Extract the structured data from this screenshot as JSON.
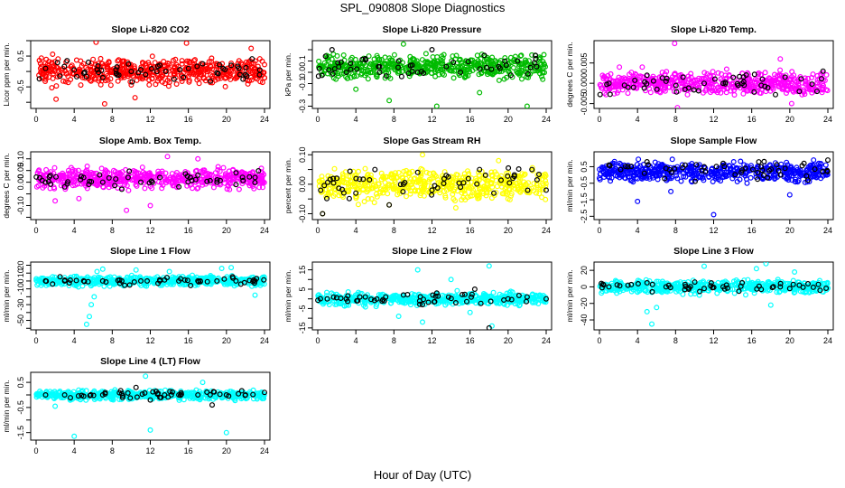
{
  "page": {
    "title": "SPL_090808  Slope Diagnostics",
    "xlabel": "Hour of Day (UTC)"
  },
  "chart_data": [
    {
      "type": "scatter",
      "title": "Slope Li-820 CO2",
      "ylabel": "Licor ppm per min.",
      "color": "#ff0000",
      "xlim": [
        0,
        24
      ],
      "xticks": [
        0,
        4,
        8,
        12,
        16,
        20,
        24
      ],
      "ylim": [
        -1.2,
        1.0
      ],
      "yticks": [
        -1.0,
        -0.5,
        0.0,
        0.5,
        1.0
      ],
      "ytick_labels": [
        "",
        "-0.5",
        "",
        "0.5",
        ""
      ],
      "center": 0.0,
      "spread": 0.28,
      "seed": 11,
      "outliers": [
        [
          6.3,
          0.95
        ],
        [
          7.2,
          -1.05
        ],
        [
          2.1,
          -0.9
        ],
        [
          15.8,
          0.92
        ],
        [
          10.4,
          -0.85
        ],
        [
          22.6,
          0.75
        ]
      ],
      "black_points": [
        [
          1.0,
          0.1
        ],
        [
          2.5,
          -0.15
        ],
        [
          4.0,
          0.05
        ],
        [
          5.5,
          0.3
        ],
        [
          7.0,
          -0.2
        ],
        [
          8.5,
          0.15
        ],
        [
          10.0,
          0.0
        ],
        [
          11.5,
          -0.1
        ],
        [
          13.0,
          0.2
        ],
        [
          14.5,
          -0.25
        ],
        [
          16.0,
          0.1
        ],
        [
          17.5,
          0.25
        ],
        [
          19.0,
          -0.05
        ],
        [
          20.5,
          0.2
        ],
        [
          22.0,
          -0.1
        ],
        [
          23.5,
          0.05
        ]
      ]
    },
    {
      "type": "scatter",
      "title": "Slope Li-820 Pressure",
      "ylabel": "kPa per min.",
      "color": "#00bb00",
      "xlim": [
        0,
        24
      ],
      "xticks": [
        0,
        4,
        8,
        12,
        16,
        20,
        24
      ],
      "ylim": [
        -0.32,
        0.28
      ],
      "yticks": [
        -0.3,
        -0.2,
        -0.1,
        0.0,
        0.1,
        0.2
      ],
      "ytick_labels": [
        "-0.3",
        "",
        "-0.1",
        "0.0",
        "0.1",
        ""
      ],
      "center": 0.05,
      "spread": 0.07,
      "seed": 23,
      "outliers": [
        [
          4.0,
          -0.15
        ],
        [
          7.5,
          -0.25
        ],
        [
          12.5,
          -0.3
        ],
        [
          17.0,
          -0.18
        ],
        [
          22.0,
          -0.3
        ],
        [
          9.0,
          0.25
        ]
      ],
      "black_points": [
        [
          1.5,
          0.2
        ],
        [
          3.0,
          0.0
        ],
        [
          5.0,
          0.12
        ],
        [
          6.5,
          0.05
        ],
        [
          8.5,
          0.1
        ],
        [
          10.5,
          0.0
        ],
        [
          12.0,
          0.2
        ],
        [
          13.5,
          0.05
        ],
        [
          15.0,
          0.0
        ],
        [
          17.5,
          0.15
        ],
        [
          19.0,
          0.05
        ],
        [
          21.0,
          0.1
        ],
        [
          23.0,
          0.05
        ]
      ]
    },
    {
      "type": "scatter",
      "title": "Slope Li-820 Temp.",
      "ylabel": "degrees C per min.",
      "color": "#ff00ff",
      "xlim": [
        0,
        24
      ],
      "xticks": [
        0,
        4,
        8,
        12,
        16,
        20,
        24
      ],
      "ylim": [
        -0.0062,
        0.0105
      ],
      "yticks": [
        -0.005,
        0.0,
        0.005
      ],
      "ytick_labels": [
        "-0.005",
        "0.000",
        "0.005"
      ],
      "center": 0.0,
      "spread": 0.0018,
      "seed": 37,
      "outliers": [
        [
          7.9,
          0.0098
        ],
        [
          8.2,
          -0.006
        ],
        [
          2.1,
          0.004
        ],
        [
          19.0,
          0.006
        ],
        [
          20.2,
          -0.005
        ],
        [
          4.5,
          0.004
        ]
      ],
      "black_points": [
        [
          1.0,
          0.0
        ],
        [
          3.0,
          -0.001
        ],
        [
          5.0,
          0.002
        ],
        [
          7.0,
          0.0005
        ],
        [
          9.0,
          -0.0015
        ],
        [
          11.0,
          0.0
        ],
        [
          13.0,
          0.0
        ],
        [
          15.0,
          0.0
        ],
        [
          17.0,
          -0.0005
        ],
        [
          19.5,
          0.0015
        ],
        [
          21.0,
          -0.002
        ],
        [
          23.5,
          0.003
        ]
      ]
    },
    {
      "type": "scatter",
      "title": "Slope Amb. Box Temp.",
      "ylabel": "degrees C per min.",
      "color": "#ff00ff",
      "xlim": [
        0,
        24
      ],
      "xticks": [
        0,
        4,
        8,
        12,
        16,
        20,
        24
      ],
      "ylim": [
        -0.16,
        0.13
      ],
      "yticks": [
        -0.15,
        -0.1,
        -0.05,
        0.0,
        0.05,
        0.1
      ],
      "ytick_labels": [
        "",
        "-0.10",
        "",
        "0.00",
        "0.05",
        "0.10"
      ],
      "center": 0.015,
      "spread": 0.028,
      "seed": 41,
      "outliers": [
        [
          2.0,
          -0.08
        ],
        [
          9.5,
          -0.12
        ],
        [
          12.0,
          -0.1
        ],
        [
          13.8,
          0.11
        ],
        [
          17.0,
          0.1
        ],
        [
          4.5,
          -0.07
        ]
      ],
      "black_points": [
        [
          1.0,
          0.0
        ],
        [
          3.0,
          -0.02
        ],
        [
          5.0,
          0.02
        ],
        [
          7.0,
          0.0
        ],
        [
          9.0,
          -0.03
        ],
        [
          11.0,
          0.0
        ],
        [
          13.0,
          0.02
        ],
        [
          15.0,
          -0.02
        ],
        [
          17.0,
          0.03
        ],
        [
          19.0,
          0.0
        ],
        [
          21.0,
          0.04
        ],
        [
          23.0,
          0.02
        ]
      ]
    },
    {
      "type": "scatter",
      "title": "Slope Gas Stream RH",
      "ylabel": "percent per min.",
      "color": "#ffff00",
      "xlim": [
        0,
        24
      ],
      "xticks": [
        0,
        4,
        8,
        12,
        16,
        20,
        24
      ],
      "ylim": [
        -0.12,
        0.11
      ],
      "yticks": [
        -0.1,
        -0.05,
        0.0,
        0.05,
        0.1
      ],
      "ytick_labels": [
        "-0.10",
        "",
        "0.00",
        "",
        "0.10"
      ],
      "center": 0.0,
      "spread": 0.035,
      "seed": 53,
      "outliers": [
        [
          7.5,
          -0.07
        ],
        [
          11.0,
          0.1
        ],
        [
          14.5,
          -0.08
        ],
        [
          19.0,
          0.08
        ],
        [
          0.5,
          -0.1
        ]
      ],
      "black_points": [
        [
          0.5,
          -0.1
        ],
        [
          2.0,
          0.02
        ],
        [
          4.0,
          -0.03
        ],
        [
          6.0,
          0.05
        ],
        [
          7.5,
          -0.07
        ],
        [
          9.0,
          0.0
        ],
        [
          10.5,
          0.04
        ],
        [
          12.0,
          -0.02
        ],
        [
          13.5,
          0.03
        ],
        [
          15.0,
          -0.01
        ],
        [
          17.0,
          0.05
        ],
        [
          18.5,
          -0.03
        ],
        [
          20.5,
          0.02
        ],
        [
          22.5,
          0.05
        ],
        [
          24.0,
          -0.02
        ]
      ]
    },
    {
      "type": "scatter",
      "title": "Slope Sample Flow",
      "ylabel": "ml/min per min.",
      "color": "#0000ff",
      "xlim": [
        0,
        24
      ],
      "xticks": [
        0,
        4,
        8,
        12,
        16,
        20,
        24
      ],
      "ylim": [
        -2.7,
        1.4
      ],
      "yticks": [
        -2.5,
        -1.5,
        -0.5,
        0.5
      ],
      "ytick_labels": [
        "-2.5",
        "-1.5",
        "-0.5",
        "0.5"
      ],
      "center": 0.2,
      "spread": 0.4,
      "seed": 67,
      "outliers": [
        [
          4.0,
          -1.6
        ],
        [
          12.0,
          -2.4
        ],
        [
          20.0,
          -1.2
        ],
        [
          22.5,
          0.9
        ],
        [
          7.5,
          -1.0
        ]
      ],
      "black_points": [
        [
          1.0,
          0.6
        ],
        [
          3.0,
          0.5
        ],
        [
          5.0,
          0.8
        ],
        [
          7.0,
          0.4
        ],
        [
          9.0,
          0.6
        ],
        [
          11.0,
          0.5
        ],
        [
          13.0,
          0.7
        ],
        [
          15.0,
          0.3
        ],
        [
          17.0,
          0.5
        ],
        [
          19.5,
          0.4
        ],
        [
          21.5,
          0.7
        ],
        [
          24.0,
          0.9
        ]
      ]
    },
    {
      "type": "scatter",
      "title": "Slope Line 1 Flow",
      "ylabel": "ml/min per min.",
      "color": "#00ffff",
      "xlim": [
        0,
        24
      ],
      "xticks": [
        0,
        4,
        8,
        12,
        16,
        20,
        24
      ],
      "ylim": [
        -62,
        24
      ],
      "yticks": [
        -60,
        -50,
        -40,
        -30,
        -20,
        -10,
        0,
        10,
        20
      ],
      "ytick_labels": [
        "",
        "-50",
        "",
        "-30",
        "",
        "-10",
        "0",
        "10",
        "20"
      ],
      "center": 0.0,
      "spread": 4.0,
      "seed": 71,
      "outliers": [
        [
          5.3,
          -55
        ],
        [
          5.6,
          -45
        ],
        [
          5.8,
          -30
        ],
        [
          6.1,
          -20
        ],
        [
          6.4,
          12
        ],
        [
          7.0,
          15
        ],
        [
          10.5,
          14
        ],
        [
          14.0,
          12
        ],
        [
          19.5,
          16
        ],
        [
          20.5,
          17
        ],
        [
          23.0,
          -18
        ]
      ],
      "black_points": [
        [
          1.0,
          0
        ],
        [
          3.0,
          0
        ],
        [
          5.0,
          0
        ],
        [
          7.0,
          0
        ],
        [
          9.0,
          0
        ],
        [
          11.0,
          0
        ],
        [
          13.0,
          0
        ],
        [
          15.0,
          0
        ],
        [
          17.0,
          0
        ],
        [
          19.0,
          0
        ],
        [
          21.0,
          0
        ],
        [
          23.0,
          0
        ]
      ]
    },
    {
      "type": "scatter",
      "title": "Slope Line 2 Flow",
      "ylabel": "ml/min per min.",
      "color": "#00ffff",
      "xlim": [
        0,
        24
      ],
      "xticks": [
        0,
        4,
        8,
        12,
        16,
        20,
        24
      ],
      "ylim": [
        -16,
        19
      ],
      "yticks": [
        -15,
        -10,
        -5,
        0,
        5,
        10,
        15
      ],
      "ytick_labels": [
        "-15",
        "",
        "-5",
        "",
        "5",
        "",
        "15"
      ],
      "center": 0.0,
      "spread": 2.2,
      "seed": 83,
      "outliers": [
        [
          10.5,
          15
        ],
        [
          11.0,
          -12
        ],
        [
          18.0,
          17
        ],
        [
          18.3,
          -14
        ],
        [
          14.0,
          10
        ],
        [
          8.5,
          -9
        ],
        [
          16.0,
          -7
        ]
      ],
      "black_points": [
        [
          1.0,
          0
        ],
        [
          3.0,
          0
        ],
        [
          5.0,
          1
        ],
        [
          7.0,
          -1
        ],
        [
          9.0,
          2
        ],
        [
          11.0,
          -3
        ],
        [
          12.5,
          3
        ],
        [
          14.5,
          -2
        ],
        [
          16.5,
          5
        ],
        [
          18.0,
          -15
        ],
        [
          20.0,
          0
        ],
        [
          22.0,
          1
        ],
        [
          24.0,
          0
        ]
      ]
    },
    {
      "type": "scatter",
      "title": "Slope Line 3 Flow",
      "ylabel": "ml/min per min.",
      "color": "#00ffff",
      "xlim": [
        0,
        24
      ],
      "xticks": [
        0,
        4,
        8,
        12,
        16,
        20,
        24
      ],
      "ylim": [
        -52,
        30
      ],
      "yticks": [
        -40,
        -20,
        0,
        20
      ],
      "ytick_labels": [
        "-40",
        "-20",
        "0",
        "20"
      ],
      "center": 0.0,
      "spread": 5.0,
      "seed": 97,
      "outliers": [
        [
          5.5,
          -45
        ],
        [
          5.0,
          -30
        ],
        [
          6.0,
          -25
        ],
        [
          11.0,
          25
        ],
        [
          16.5,
          22
        ],
        [
          17.5,
          28
        ],
        [
          18.0,
          -22
        ],
        [
          20.5,
          18
        ],
        [
          10.5,
          -10
        ]
      ],
      "black_points": [
        [
          1.0,
          0
        ],
        [
          3.0,
          2
        ],
        [
          5.0,
          5
        ],
        [
          7.0,
          0
        ],
        [
          9.0,
          3
        ],
        [
          11.0,
          -2
        ],
        [
          13.0,
          0
        ],
        [
          15.0,
          5
        ],
        [
          17.0,
          -3
        ],
        [
          19.0,
          0
        ],
        [
          21.0,
          2
        ],
        [
          23.0,
          3
        ]
      ]
    },
    {
      "type": "scatter",
      "title": "Slope Line 4 (LT) Flow",
      "ylabel": "ml/min per min.",
      "color": "#00ffff",
      "xlim": [
        0,
        24
      ],
      "xticks": [
        0,
        4,
        8,
        12,
        16,
        20,
        24
      ],
      "ylim": [
        -1.8,
        0.9
      ],
      "yticks": [
        -1.5,
        -1.0,
        -0.5,
        0.0,
        0.5
      ],
      "ytick_labels": [
        "-1.5",
        "",
        "-0.5",
        "",
        "0.5"
      ],
      "center": 0.0,
      "spread": 0.12,
      "seed": 101,
      "outliers": [
        [
          4.0,
          -1.65
        ],
        [
          12.0,
          -1.4
        ],
        [
          20.0,
          -1.5
        ],
        [
          11.5,
          0.75
        ],
        [
          17.5,
          0.5
        ],
        [
          2.0,
          -0.45
        ]
      ],
      "black_points": [
        [
          1.0,
          0.0
        ],
        [
          3.0,
          0.0
        ],
        [
          5.0,
          -0.05
        ],
        [
          7.0,
          0.0
        ],
        [
          9.0,
          0.05
        ],
        [
          10.5,
          0.3
        ],
        [
          12.0,
          -0.2
        ],
        [
          13.5,
          0.0
        ],
        [
          15.0,
          0.0
        ],
        [
          17.0,
          0.0
        ],
        [
          18.5,
          -0.4
        ],
        [
          20.0,
          0.0
        ],
        [
          22.0,
          0.0
        ],
        [
          24.0,
          0.1
        ]
      ]
    }
  ]
}
